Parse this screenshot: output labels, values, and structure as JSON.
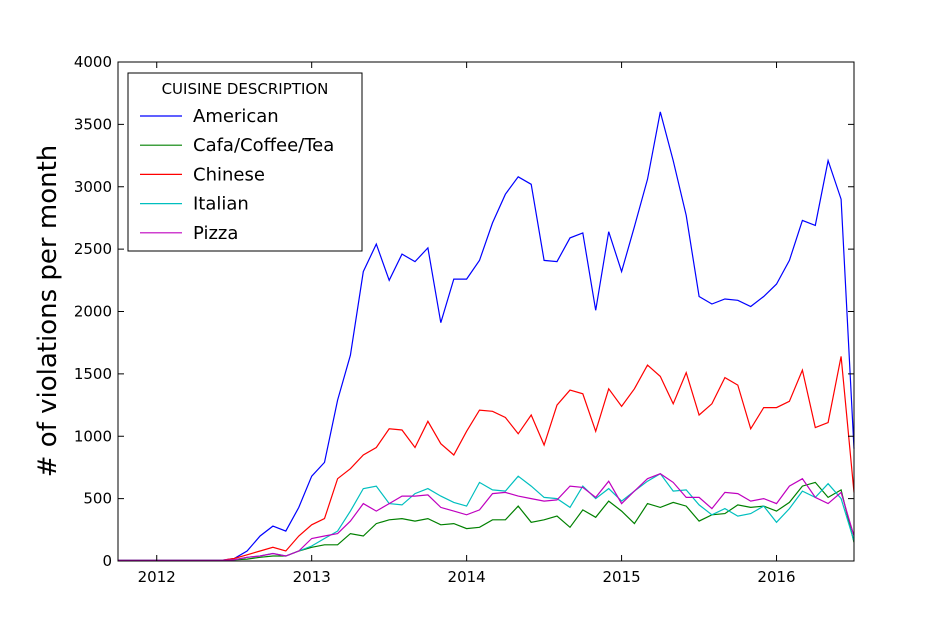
{
  "chart_data": {
    "type": "line",
    "xlabel": "",
    "ylabel": "# of violations per month",
    "xlim": [
      2011.75,
      2016.5
    ],
    "ylim": [
      0,
      4000
    ],
    "x_ticks": [
      2012,
      2013,
      2014,
      2015,
      2016
    ],
    "x_tick_labels": [
      "2012",
      "2013",
      "2014",
      "2015",
      "2016"
    ],
    "y_ticks": [
      0,
      500,
      1000,
      1500,
      2000,
      2500,
      3000,
      3500,
      4000
    ],
    "y_tick_labels": [
      "0",
      "500",
      "1000",
      "1500",
      "2000",
      "2500",
      "3000",
      "3500",
      "4000"
    ],
    "grid": false,
    "legend": {
      "title": "CUISINE DESCRIPTION",
      "position": "upper-left"
    },
    "x": [
      2011.75,
      2011.833,
      2011.917,
      2012.0,
      2012.083,
      2012.167,
      2012.25,
      2012.333,
      2012.417,
      2012.5,
      2012.583,
      2012.667,
      2012.75,
      2012.833,
      2012.917,
      2013.0,
      2013.083,
      2013.167,
      2013.25,
      2013.333,
      2013.417,
      2013.5,
      2013.583,
      2013.667,
      2013.75,
      2013.833,
      2013.917,
      2014.0,
      2014.083,
      2014.167,
      2014.25,
      2014.333,
      2014.417,
      2014.5,
      2014.583,
      2014.667,
      2014.75,
      2014.833,
      2014.917,
      2015.0,
      2015.083,
      2015.167,
      2015.25,
      2015.333,
      2015.417,
      2015.5,
      2015.583,
      2015.667,
      2015.75,
      2015.833,
      2015.917,
      2016.0,
      2016.083,
      2016.167,
      2016.25,
      2016.333,
      2016.417,
      2016.5
    ],
    "series": [
      {
        "name": "American",
        "color": "#0000ff",
        "values": [
          5,
          5,
          5,
          5,
          5,
          5,
          5,
          5,
          5,
          20,
          80,
          200,
          280,
          240,
          430,
          680,
          790,
          1290,
          1650,
          2320,
          2540,
          2250,
          2460,
          2400,
          2510,
          1910,
          2260,
          2260,
          2410,
          2710,
          2940,
          3080,
          3020,
          2410,
          2400,
          2590,
          2630,
          2010,
          2640,
          2320,
          2680,
          3060,
          3600,
          3210,
          2770,
          2120,
          2060,
          2100,
          2090,
          2040,
          2120,
          2220,
          2410,
          2730,
          2690,
          3210,
          2900,
          900
        ]
      },
      {
        "name": "Cafa/Coffee/Tea",
        "color": "#008000",
        "values": [
          5,
          5,
          5,
          5,
          5,
          5,
          5,
          5,
          5,
          10,
          15,
          30,
          40,
          40,
          80,
          110,
          130,
          130,
          220,
          200,
          300,
          330,
          340,
          320,
          340,
          290,
          300,
          260,
          270,
          330,
          330,
          440,
          310,
          330,
          360,
          270,
          410,
          350,
          480,
          400,
          300,
          460,
          430,
          470,
          440,
          320,
          370,
          380,
          450,
          430,
          440,
          400,
          470,
          600,
          630,
          510,
          570,
          150
        ]
      },
      {
        "name": "Chinese",
        "color": "#ff0000",
        "values": [
          5,
          5,
          5,
          5,
          5,
          5,
          5,
          5,
          5,
          20,
          50,
          80,
          110,
          80,
          200,
          290,
          340,
          660,
          740,
          850,
          910,
          1060,
          1050,
          910,
          1120,
          940,
          850,
          1040,
          1210,
          1200,
          1150,
          1020,
          1170,
          930,
          1250,
          1370,
          1340,
          1040,
          1380,
          1240,
          1380,
          1570,
          1480,
          1260,
          1510,
          1170,
          1260,
          1470,
          1410,
          1060,
          1230,
          1230,
          1280,
          1530,
          1070,
          1110,
          1640,
          550
        ]
      },
      {
        "name": "Italian",
        "color": "#00bfbf",
        "values": [
          5,
          5,
          5,
          5,
          5,
          5,
          5,
          5,
          5,
          10,
          30,
          40,
          60,
          40,
          80,
          120,
          180,
          240,
          400,
          580,
          600,
          460,
          450,
          540,
          580,
          520,
          470,
          440,
          630,
          570,
          560,
          680,
          600,
          510,
          500,
          430,
          600,
          500,
          580,
          480,
          560,
          640,
          700,
          560,
          570,
          450,
          370,
          420,
          360,
          380,
          440,
          310,
          420,
          560,
          510,
          620,
          500,
          160
        ]
      },
      {
        "name": "Pizza",
        "color": "#bf00bf",
        "values": [
          5,
          5,
          5,
          5,
          5,
          5,
          5,
          5,
          5,
          10,
          30,
          40,
          60,
          40,
          80,
          180,
          200,
          220,
          320,
          460,
          400,
          460,
          520,
          520,
          530,
          430,
          400,
          370,
          410,
          540,
          550,
          520,
          500,
          480,
          490,
          600,
          590,
          510,
          640,
          460,
          560,
          660,
          700,
          630,
          510,
          510,
          420,
          550,
          540,
          480,
          500,
          460,
          600,
          660,
          510,
          460,
          550,
          200
        ]
      }
    ]
  }
}
